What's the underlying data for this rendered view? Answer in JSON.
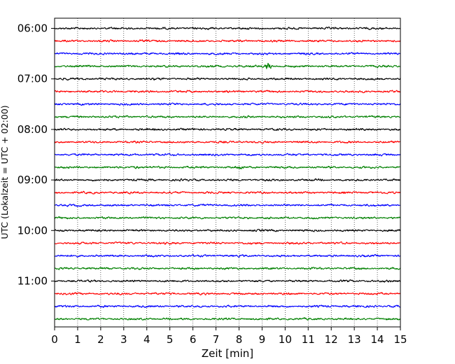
{
  "chart_data": {
    "type": "line",
    "subtype": "helicorder",
    "xlabel": "Zeit  [min]",
    "ylabel": "UTC (Lokalzeit = UTC + 02:00)",
    "xlim": [
      0,
      15
    ],
    "x_ticks": [
      "0",
      "1",
      "2",
      "3",
      "4",
      "5",
      "6",
      "7",
      "8",
      "9",
      "10",
      "11",
      "12",
      "13",
      "14",
      "15"
    ],
    "y_hour_labels": [
      "06:00",
      "07:00",
      "08:00",
      "09:00",
      "10:00",
      "11:00"
    ],
    "start_time": "06:00",
    "trace_interval_min": 15,
    "trace_count": 24,
    "trace_colors": [
      "#000000",
      "#ff0000",
      "#0000ff",
      "#008000"
    ],
    "grid": "vertical dotted at each minute",
    "events": [
      {
        "trace": 3,
        "x_min": 9.25,
        "note": "small spike"
      },
      {
        "trace": 11,
        "x_min": 3.5,
        "note": "slightly elevated amplitude"
      },
      {
        "trace": 11,
        "x_min": 8.05,
        "note": "slightly elevated amplitude"
      }
    ]
  }
}
